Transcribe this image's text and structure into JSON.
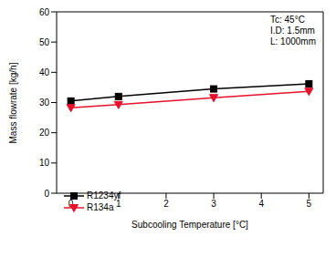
{
  "chart_data": {
    "type": "line",
    "x_label": "Subcooling Temperature [°C]",
    "y_label": "Mass flowrate [kg/h]",
    "annotations": [
      "Tc: 45°C",
      "I.D: 1.5mm",
      "L: 1000mm"
    ],
    "x": [
      0,
      1,
      3,
      5
    ],
    "series": [
      {
        "name": "R1234yf",
        "color": "#000000",
        "marker": "square",
        "values": [
          30.5,
          32.0,
          34.5,
          36.2
        ]
      },
      {
        "name": "R134a",
        "color": "#e8102a",
        "marker": "triangle-down",
        "values": [
          28.3,
          29.3,
          31.6,
          33.7
        ]
      }
    ],
    "xlim": [
      -0.3,
      5.3
    ],
    "xticks": [
      0,
      1,
      2,
      3,
      4,
      5
    ],
    "ylim": [
      0,
      60
    ],
    "yticks": [
      0,
      10,
      20,
      30,
      40,
      50,
      60
    ],
    "legend": "lower left"
  }
}
